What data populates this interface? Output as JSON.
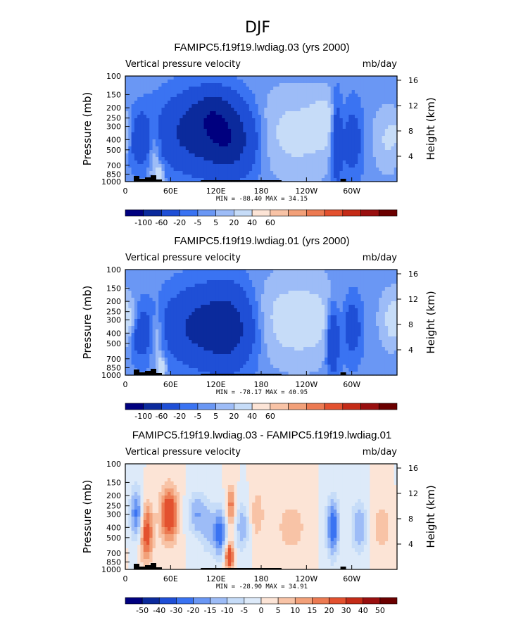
{
  "figure": {
    "title": "DJF"
  },
  "chart_data": [
    {
      "type": "heatmap",
      "title": "FAMIPC5.f19f19.lwdiag.03 (yrs 2000)",
      "subtitle_left": "Vertical pressure velocity",
      "subtitle_right": "mb/day",
      "ylabel": "Pressure (mb)",
      "y2label": "Height (km)",
      "x_ticks": [
        "0",
        "60E",
        "120E",
        "180",
        "120W",
        "60W"
      ],
      "x_tick_lon": [
        0,
        60,
        120,
        180,
        240,
        300
      ],
      "xlim": [
        0,
        360
      ],
      "y_ticks": [
        "100",
        "150",
        "200",
        "250",
        "300",
        "400",
        "500",
        "700",
        "850",
        "1000"
      ],
      "y_tick_values": [
        100,
        150,
        200,
        250,
        300,
        400,
        500,
        700,
        850,
        1000
      ],
      "ylim": [
        100,
        1000
      ],
      "y_scale": "log",
      "y2_ticks": [
        "16",
        "12",
        "8",
        "4"
      ],
      "y2_tick_values": [
        16,
        12,
        8,
        4
      ],
      "stats": "MIN = -88.40   MAX =  34.15",
      "colorbar_labels": [
        "-100",
        "-60",
        "-20",
        "-5",
        "5",
        "20",
        "40",
        "60"
      ],
      "colorbar_colors": [
        "#00007f",
        "#0b2a9c",
        "#1f4fd6",
        "#3a73f2",
        "#6a97f4",
        "#9dbcf7",
        "#c6dcf8",
        "#fce4d6",
        "#f8c3a6",
        "#f2a079",
        "#ec7a52",
        "#e3512f",
        "#c42b17",
        "#990f0f",
        "#6b0000"
      ],
      "features": [
        {
          "lon": 3,
          "p": 350,
          "v": 22,
          "dl": 6,
          "dp": 0.3
        },
        {
          "lon": 18,
          "p": 400,
          "v": -45,
          "dl": 12,
          "dp": 0.4
        },
        {
          "lon": 38,
          "p": 500,
          "v": 30,
          "dl": 6,
          "dp": 0.45
        },
        {
          "lon": 45,
          "p": 850,
          "v": 40,
          "dl": 4,
          "dp": 0.15
        },
        {
          "lon": 88,
          "p": 350,
          "v": -70,
          "dl": 32,
          "dp": 0.55
        },
        {
          "lon": 140,
          "p": 400,
          "v": -85,
          "dl": 25,
          "dp": 0.55
        },
        {
          "lon": 115,
          "p": 200,
          "v": -40,
          "dl": 20,
          "dp": 0.3
        },
        {
          "lon": 225,
          "p": 350,
          "v": 28,
          "dl": 45,
          "dp": 0.6
        },
        {
          "lon": 265,
          "p": 250,
          "v": 18,
          "dl": 15,
          "dp": 0.35
        },
        {
          "lon": 280,
          "p": 400,
          "v": -65,
          "dl": 5,
          "dp": 0.6
        },
        {
          "lon": 300,
          "p": 400,
          "v": -45,
          "dl": 10,
          "dp": 0.55
        },
        {
          "lon": 350,
          "p": 400,
          "v": 25,
          "dl": 12,
          "dp": 0.45
        }
      ]
    },
    {
      "type": "heatmap",
      "title": "FAMIPC5.f19f19.lwdiag.01 (yrs 2000)",
      "subtitle_left": "Vertical pressure velocity",
      "subtitle_right": "mb/day",
      "ylabel": "Pressure (mb)",
      "y2label": "Height (km)",
      "x_ticks": [
        "0",
        "60E",
        "120E",
        "180",
        "120W",
        "60W"
      ],
      "x_tick_lon": [
        0,
        60,
        120,
        180,
        240,
        300
      ],
      "xlim": [
        0,
        360
      ],
      "y_ticks": [
        "100",
        "150",
        "200",
        "250",
        "300",
        "400",
        "500",
        "700",
        "850",
        "1000"
      ],
      "y_tick_values": [
        100,
        150,
        200,
        250,
        300,
        400,
        500,
        700,
        850,
        1000
      ],
      "ylim": [
        100,
        1000
      ],
      "y_scale": "log",
      "y2_ticks": [
        "16",
        "12",
        "8",
        "4"
      ],
      "y2_tick_values": [
        16,
        12,
        8,
        4
      ],
      "stats": "MIN = -78.17   MAX =  40.95",
      "colorbar_labels": [
        "-100",
        "-60",
        "-20",
        "-5",
        "5",
        "20",
        "40",
        "60"
      ],
      "colorbar_colors": [
        "#00007f",
        "#0b2a9c",
        "#1f4fd6",
        "#3a73f2",
        "#6a97f4",
        "#9dbcf7",
        "#c6dcf8",
        "#fce4d6",
        "#f8c3a6",
        "#f2a079",
        "#ec7a52",
        "#e3512f",
        "#c42b17",
        "#990f0f",
        "#6b0000"
      ],
      "features": [
        {
          "lon": 8,
          "p": 300,
          "v": 20,
          "dl": 8,
          "dp": 0.3
        },
        {
          "lon": 20,
          "p": 400,
          "v": -40,
          "dl": 10,
          "dp": 0.4
        },
        {
          "lon": 42,
          "p": 450,
          "v": 25,
          "dl": 6,
          "dp": 0.45
        },
        {
          "lon": 48,
          "p": 850,
          "v": 40,
          "dl": 4,
          "dp": 0.15
        },
        {
          "lon": 92,
          "p": 350,
          "v": -60,
          "dl": 30,
          "dp": 0.55
        },
        {
          "lon": 138,
          "p": 350,
          "v": -78,
          "dl": 25,
          "dp": 0.6
        },
        {
          "lon": 228,
          "p": 300,
          "v": 35,
          "dl": 45,
          "dp": 0.6
        },
        {
          "lon": 275,
          "p": 450,
          "v": -60,
          "dl": 6,
          "dp": 0.55
        },
        {
          "lon": 300,
          "p": 350,
          "v": -45,
          "dl": 10,
          "dp": 0.5
        },
        {
          "lon": 355,
          "p": 300,
          "v": 30,
          "dl": 10,
          "dp": 0.4
        }
      ]
    },
    {
      "type": "heatmap",
      "title": "FAMIPC5.f19f19.lwdiag.03 - FAMIPC5.f19f19.lwdiag.01",
      "subtitle_left": "Vertical pressure velocity",
      "subtitle_right": "mb/day",
      "ylabel": "Pressure (mb)",
      "y2label": "Height (km)",
      "x_ticks": [
        "0",
        "60E",
        "120E",
        "180",
        "120W",
        "60W"
      ],
      "x_tick_lon": [
        0,
        60,
        120,
        180,
        240,
        300
      ],
      "xlim": [
        0,
        360
      ],
      "y_ticks": [
        "100",
        "150",
        "200",
        "250",
        "300",
        "400",
        "500",
        "700",
        "850",
        "1000"
      ],
      "y_tick_values": [
        100,
        150,
        200,
        250,
        300,
        400,
        500,
        700,
        850,
        1000
      ],
      "ylim": [
        100,
        1000
      ],
      "y_scale": "log",
      "y2_ticks": [
        "16",
        "12",
        "8",
        "4"
      ],
      "y2_tick_values": [
        16,
        12,
        8,
        4
      ],
      "stats": "MIN = -28.90   MAX =  34.91",
      "colorbar_labels": [
        "-50",
        "-40",
        "-30",
        "-20",
        "-15",
        "-10",
        "-5",
        "0",
        "5",
        "10",
        "15",
        "20",
        "30",
        "40",
        "50"
      ],
      "colorbar_colors": [
        "#00007f",
        "#0b2a9c",
        "#1f4fd6",
        "#3a73f2",
        "#6a97f4",
        "#9dbcf7",
        "#c6dcf8",
        "#ddeaf9",
        "#fce4d6",
        "#f8c3a6",
        "#f2a079",
        "#ec7a52",
        "#e3512f",
        "#c42b17",
        "#990f0f",
        "#6b0000"
      ],
      "features": [
        {
          "lon": 15,
          "p": 300,
          "v": -22,
          "dl": 6,
          "dp": 0.4
        },
        {
          "lon": 28,
          "p": 450,
          "v": 25,
          "dl": 6,
          "dp": 0.45
        },
        {
          "lon": 58,
          "p": 300,
          "v": 30,
          "dl": 8,
          "dp": 0.4
        },
        {
          "lon": 95,
          "p": 300,
          "v": -15,
          "dl": 8,
          "dp": 0.35
        },
        {
          "lon": 110,
          "p": 400,
          "v": -12,
          "dl": 6,
          "dp": 0.4
        },
        {
          "lon": 125,
          "p": 450,
          "v": -25,
          "dl": 6,
          "dp": 0.35
        },
        {
          "lon": 138,
          "p": 750,
          "v": 30,
          "dl": 4,
          "dp": 0.2
        },
        {
          "lon": 140,
          "p": 250,
          "v": 18,
          "dl": 4,
          "dp": 0.3
        },
        {
          "lon": 155,
          "p": 400,
          "v": -15,
          "dl": 6,
          "dp": 0.35
        },
        {
          "lon": 175,
          "p": 300,
          "v": 10,
          "dl": 6,
          "dp": 0.35
        },
        {
          "lon": 220,
          "p": 400,
          "v": 8,
          "dl": 15,
          "dp": 0.4
        },
        {
          "lon": 275,
          "p": 400,
          "v": -25,
          "dl": 6,
          "dp": 0.45
        },
        {
          "lon": 310,
          "p": 400,
          "v": -15,
          "dl": 8,
          "dp": 0.4
        },
        {
          "lon": 340,
          "p": 400,
          "v": 8,
          "dl": 10,
          "dp": 0.4
        }
      ]
    }
  ]
}
